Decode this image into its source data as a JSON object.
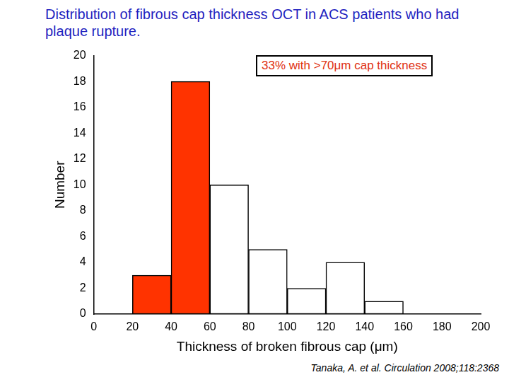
{
  "chart_data": {
    "type": "histogram",
    "title": "Distribution of fibrous cap thickness OCT in ACS patients who had plaque rupture.",
    "annotation": "33% with >70μm cap thickness",
    "source": "Tanaka, A. et al. Circulation 2008;118:2368",
    "x_label": "Thickness of broken fibrous cap (μm)",
    "y_label": "Number",
    "bins": [
      20,
      40,
      60,
      80,
      100,
      120,
      140,
      160
    ],
    "values": [
      3,
      18,
      10,
      5,
      2,
      4,
      1
    ],
    "colors": [
      "#ff3300",
      "#ff3300",
      "#ffffff",
      "#ffffff",
      "#ffffff",
      "#ffffff",
      "#ffffff"
    ],
    "xlim": [
      0,
      200
    ],
    "xticks": [
      0,
      20,
      40,
      60,
      80,
      100,
      120,
      140,
      160,
      180,
      200
    ],
    "ylim": [
      0,
      20
    ],
    "yticks": [
      0,
      2,
      4,
      6,
      8,
      10,
      12,
      14,
      16,
      18,
      20
    ],
    "grid": false
  }
}
